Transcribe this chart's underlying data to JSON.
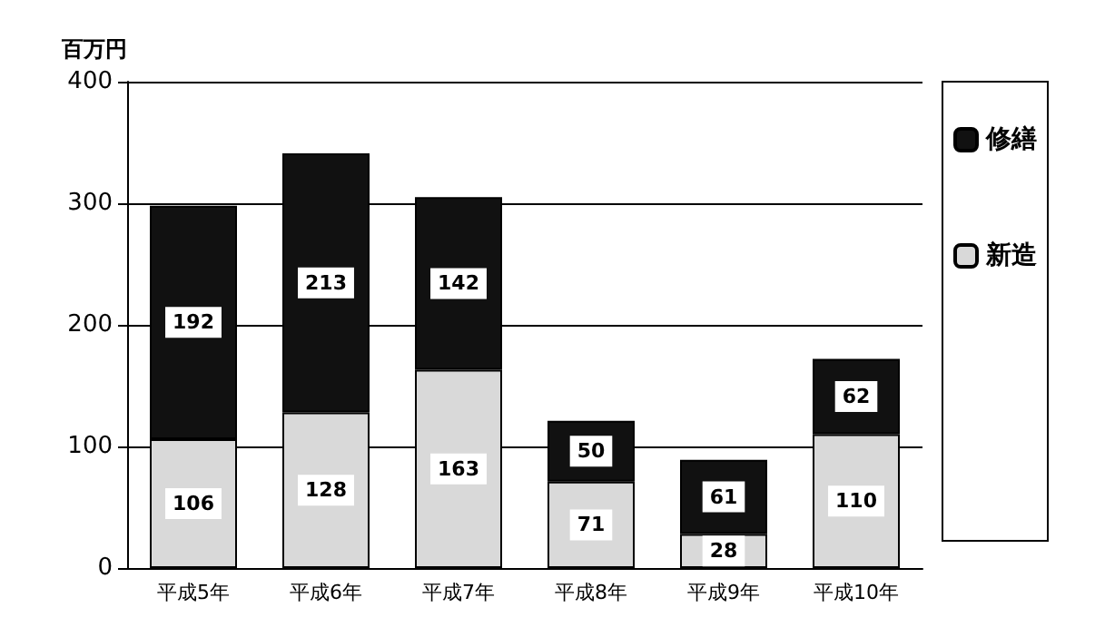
{
  "chart_data": {
    "type": "bar",
    "stacked": true,
    "ylabel": "百万円",
    "categories": [
      "平成5年",
      "平成6年",
      "平成7年",
      "平成8年",
      "平成9年",
      "平成10年"
    ],
    "series": [
      {
        "name": "新造",
        "color": "#d9d9d9",
        "values": [
          106,
          128,
          163,
          71,
          28,
          110
        ]
      },
      {
        "name": "修繕",
        "color": "#111111",
        "values": [
          192,
          213,
          142,
          50,
          61,
          62
        ]
      }
    ],
    "ylim": [
      0,
      400
    ],
    "yticks": [
      0,
      100,
      200,
      300,
      400
    ],
    "grid": "y",
    "legend": "right",
    "data_labels": true
  }
}
